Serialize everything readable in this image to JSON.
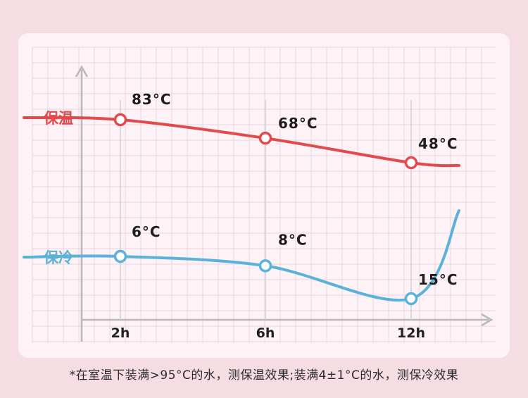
{
  "footnote": "*在室温下装满>95°C的水，测保温效果;装满4±1°C的水，测保冷效果",
  "colors": {
    "hot": "#e24a4e",
    "cold": "#5ab2d8",
    "axis": "#b8b8bc",
    "grid": "#ead6de",
    "background": "#fdf3f6"
  },
  "chart_data": {
    "type": "line",
    "x": [
      "2h",
      "6h",
      "12h"
    ],
    "xlabel": "",
    "ylabel": "",
    "grid": true,
    "series": [
      {
        "name": "保温",
        "values": [
          83,
          68,
          48
        ],
        "labels": [
          "83°C",
          "68°C",
          "48°C"
        ],
        "color": "#e24a4e"
      },
      {
        "name": "保冷",
        "values": [
          6,
          8,
          15
        ],
        "labels": [
          "6°C",
          "8°C",
          "15°C"
        ],
        "color": "#5ab2d8"
      }
    ]
  }
}
